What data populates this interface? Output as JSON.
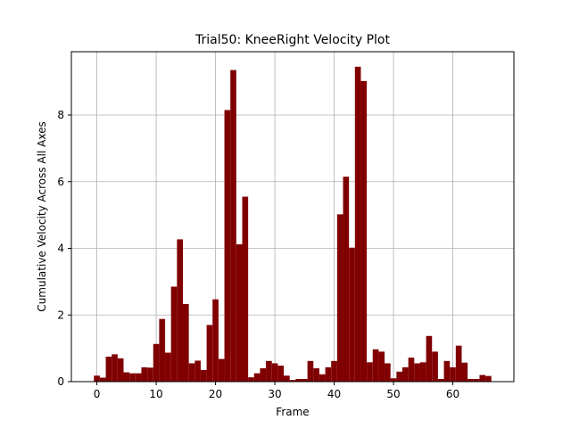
{
  "chart_data": {
    "type": "bar",
    "title": "Trial50: KneeRight Velocity Plot",
    "xlabel": "Frame",
    "ylabel": "Cumulative Velocity Across All Axes",
    "x": [
      0,
      1,
      2,
      3,
      4,
      5,
      6,
      7,
      8,
      9,
      10,
      11,
      12,
      13,
      14,
      15,
      16,
      17,
      18,
      19,
      20,
      21,
      22,
      23,
      24,
      25,
      26,
      27,
      28,
      29,
      30,
      31,
      32,
      33,
      34,
      35,
      36,
      37,
      38,
      39,
      40,
      41,
      42,
      43,
      44,
      45,
      46,
      47,
      48,
      49,
      50,
      51,
      52,
      53,
      54,
      55,
      56,
      57,
      58,
      59,
      60,
      61,
      62,
      63,
      64,
      65,
      66
    ],
    "values": [
      0.18,
      0.12,
      0.75,
      0.82,
      0.7,
      0.28,
      0.25,
      0.25,
      0.43,
      0.42,
      1.13,
      1.88,
      0.87,
      2.85,
      4.27,
      2.33,
      0.55,
      0.63,
      0.35,
      1.7,
      2.47,
      0.68,
      8.15,
      9.35,
      4.12,
      5.55,
      0.13,
      0.25,
      0.4,
      0.62,
      0.55,
      0.48,
      0.18,
      0.05,
      0.08,
      0.08,
      0.62,
      0.4,
      0.22,
      0.43,
      0.62,
      5.02,
      6.15,
      4.02,
      9.45,
      9.02,
      0.58,
      0.97,
      0.9,
      0.55,
      0.1,
      0.3,
      0.43,
      0.72,
      0.55,
      0.58,
      1.37,
      0.9,
      0.08,
      0.62,
      0.43,
      1.08,
      0.57,
      0.08,
      0.08,
      0.2,
      0.17
    ],
    "xlim": [
      -4.3,
      70.3
    ],
    "ylim": [
      0,
      9.9
    ],
    "xticks": [
      0,
      10,
      20,
      30,
      40,
      50,
      60
    ],
    "yticks": [
      0,
      2,
      4,
      6,
      8
    ],
    "grid": true,
    "bar_color": "#800000",
    "grid_color": "#b0b0b0"
  }
}
